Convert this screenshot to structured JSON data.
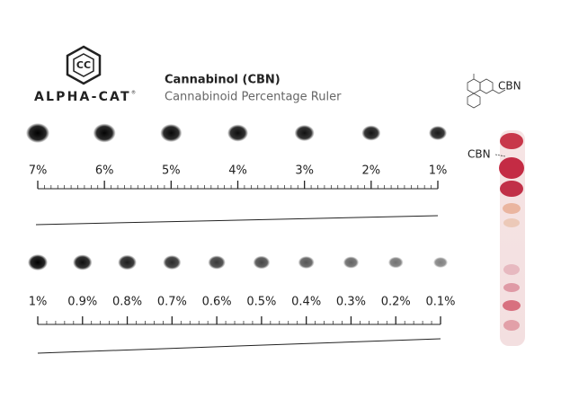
{
  "logo": {
    "name": "ALPHA-CAT",
    "mark": "®"
  },
  "header": {
    "title": "Cannabinol (CBN)",
    "subtitle": "Cannabinoid Percentage Ruler"
  },
  "molecule": {
    "label": "CBN"
  },
  "strip": {
    "label": "CBN"
  },
  "rulers": [
    {
      "labels": [
        "7%",
        "6%",
        "5%",
        "4%",
        "3%",
        "2%",
        "1%"
      ]
    },
    {
      "labels": [
        "1%",
        "0.9%",
        "0.8%",
        "0.7%",
        "0.6%",
        "0.5%",
        "0.4%",
        "0.3%",
        "0.2%",
        "0.1%"
      ]
    }
  ]
}
